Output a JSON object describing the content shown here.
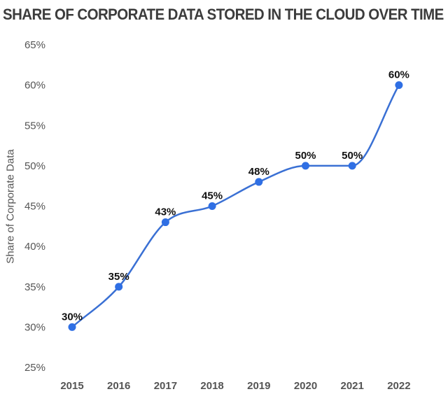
{
  "chart_data": {
    "type": "line",
    "title": "SHARE OF CORPORATE DATA STORED IN THE CLOUD OVER TIME",
    "xlabel": "",
    "ylabel": "Share of Corporate Data",
    "categories": [
      "2015",
      "2016",
      "2017",
      "2018",
      "2019",
      "2020",
      "2021",
      "2022"
    ],
    "values": [
      30,
      35,
      43,
      45,
      48,
      50,
      50,
      60
    ],
    "data_labels": [
      "30%",
      "35%",
      "43%",
      "45%",
      "48%",
      "50%",
      "50%",
      "60%"
    ],
    "yticks": [
      "25%",
      "30%",
      "35%",
      "40%",
      "45%",
      "50%",
      "55%",
      "60%",
      "65%"
    ],
    "ylim": [
      25,
      65
    ],
    "grid": false,
    "smooth": true,
    "colors": {
      "line": "#3a70d4",
      "marker": "#2f6fe4",
      "title": "#3c3c3c",
      "ticks": "#555555",
      "labels": "#111111"
    }
  }
}
